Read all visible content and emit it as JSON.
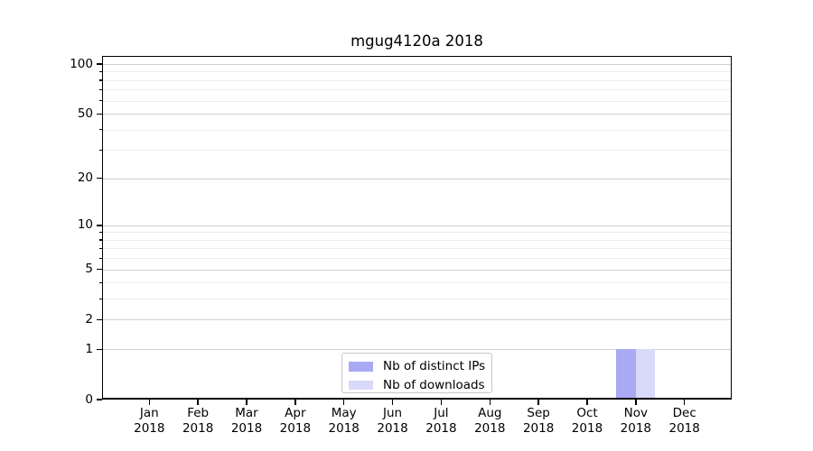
{
  "chart_data": {
    "type": "bar",
    "title": "mgug4120a 2018",
    "categories": [
      {
        "month": "Jan",
        "year": "2018"
      },
      {
        "month": "Feb",
        "year": "2018"
      },
      {
        "month": "Mar",
        "year": "2018"
      },
      {
        "month": "Apr",
        "year": "2018"
      },
      {
        "month": "May",
        "year": "2018"
      },
      {
        "month": "Jun",
        "year": "2018"
      },
      {
        "month": "Jul",
        "year": "2018"
      },
      {
        "month": "Aug",
        "year": "2018"
      },
      {
        "month": "Sep",
        "year": "2018"
      },
      {
        "month": "Oct",
        "year": "2018"
      },
      {
        "month": "Nov",
        "year": "2018"
      },
      {
        "month": "Dec",
        "year": "2018"
      }
    ],
    "series": [
      {
        "name": "Nb of distinct IPs",
        "color": "#a9a9f4",
        "values": [
          0,
          0,
          0,
          0,
          0,
          0,
          0,
          0,
          0,
          0,
          1,
          0
        ]
      },
      {
        "name": "Nb of downloads",
        "color": "#d9d9f9",
        "values": [
          0,
          0,
          0,
          0,
          0,
          0,
          0,
          0,
          0,
          0,
          1,
          0
        ]
      }
    ],
    "xlabel": "",
    "ylabel": "",
    "yaxis": {
      "scale": "log1p",
      "ticks": [
        0,
        1,
        2,
        5,
        10,
        20,
        50,
        100
      ],
      "minor_ticks": [
        3,
        4,
        6,
        7,
        8,
        9,
        30,
        40,
        60,
        70,
        80,
        90
      ],
      "ylim": [
        0,
        111
      ]
    },
    "grid": true,
    "legend": {
      "position": "lower center",
      "entries": [
        "Nb of distinct IPs",
        "Nb of downloads"
      ]
    },
    "colors": {
      "axis": "#000000",
      "major_grid": "#d0d0d0",
      "minor_grid": "#ececec",
      "distinct_ips_bar": "#a9a9f4",
      "downloads_bar": "#d9d9f9"
    }
  }
}
